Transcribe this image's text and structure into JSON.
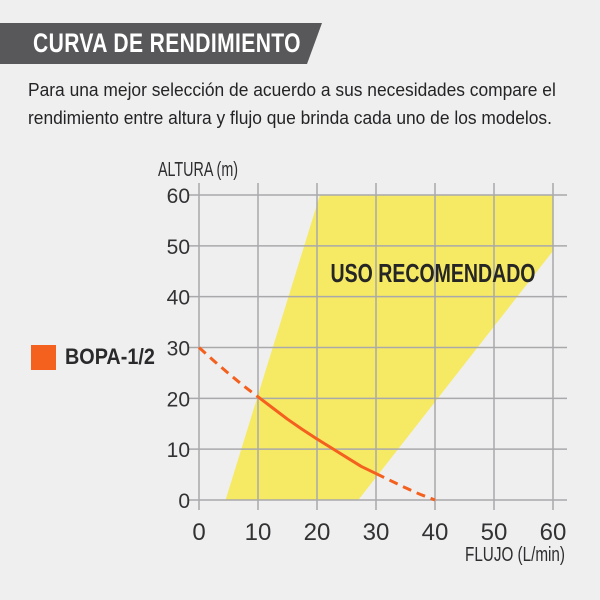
{
  "header": {
    "title": "CURVA DE RENDIMIENTO",
    "bg_color": "#58585a",
    "text_color": "#ffffff"
  },
  "intro": {
    "lines": [
      "Para una mejor selección de acuerdo a sus necesidades compare el",
      "rendimiento entre altura y flujo que brinda cada uno de los modelos."
    ]
  },
  "legend": {
    "swatch_color": "#f4601e",
    "label": "BOPA-1/2"
  },
  "chart_data": {
    "type": "line",
    "xlabel": "FLUJO (L/min)",
    "ylabel": "ALTURA (m)",
    "xlim": [
      0,
      60
    ],
    "ylim": [
      0,
      60
    ],
    "xticks": [
      0,
      10,
      20,
      30,
      40,
      50,
      60
    ],
    "yticks": [
      0,
      10,
      20,
      30,
      40,
      50,
      60
    ],
    "grid": true,
    "recommended_region": {
      "label": "USO RECOMENDADO",
      "fill_color": "#f6e964",
      "label_color": "#262626",
      "polygon": [
        [
          4.5,
          0
        ],
        [
          20.5,
          60
        ],
        [
          60,
          60
        ],
        [
          60,
          49
        ],
        [
          27,
          0
        ]
      ]
    },
    "series": [
      {
        "name": "BOPA-1/2",
        "color": "#f4601e",
        "segments": [
          {
            "style": "dashed",
            "points": [
              [
                0,
                30
              ],
              [
                2.5,
                27.4
              ],
              [
                5,
                24.9
              ],
              [
                7.5,
                22.5
              ],
              [
                10,
                20.3
              ]
            ]
          },
          {
            "style": "solid",
            "points": [
              [
                10,
                20.3
              ],
              [
                12.5,
                18.1
              ],
              [
                15,
                15.9
              ],
              [
                17.5,
                13.9
              ],
              [
                20,
                12
              ],
              [
                22.5,
                10.2
              ],
              [
                25,
                8.4
              ],
              [
                27.5,
                6.6
              ],
              [
                30,
                5.2
              ]
            ]
          },
          {
            "style": "dashed",
            "points": [
              [
                30,
                5.2
              ],
              [
                32.5,
                3.8
              ],
              [
                35,
                2.4
              ],
              [
                37.5,
                1.1
              ],
              [
                40,
                0
              ]
            ]
          }
        ]
      }
    ]
  },
  "colors": {
    "grid": "#a9a9ab",
    "tick_text": "#323234",
    "axis_label_text": "#2e2e30"
  }
}
